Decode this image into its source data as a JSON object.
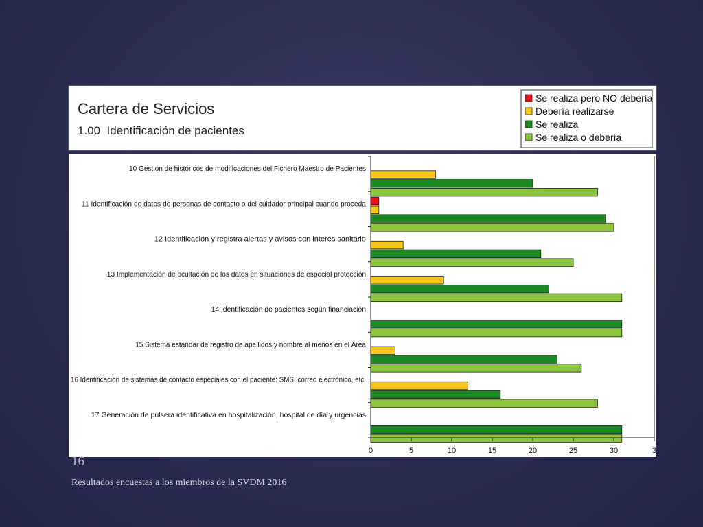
{
  "page_number": "16",
  "footer": "Resultados encuestas a los miembros de la SVDM 2016",
  "chart_data": {
    "type": "bar",
    "orientation": "horizontal",
    "title": "Cartera de Servicios",
    "subtitle": "1.00  Identificación de pacientes",
    "categories": [
      "10 Gestión de históricos de modificaciones del Fichero Maestro de Pacientes",
      "11 Identificación de datos de personas de contacto o del cuidador principal cuando proceda",
      "12 Identificación y registra alertas y avisos con interés sanitario",
      "13 Implementación de ocultación de los datos en situaciones de especial protección",
      "14 Identificación de pacientes según financiación",
      "15 Sistema estándar de registro de apellidos y nombre al menos en el Área",
      "16 Identificación de sistemas de contacto especiales con el paciente: SMS, correo electrónico, etc.",
      "17 Generación de pulsera identificativa en hospitalización, hospital de día y urgencias"
    ],
    "series": [
      {
        "name": "Se realiza pero NO debería",
        "color": "#e8141c",
        "values": [
          0,
          1,
          0,
          0,
          0,
          0,
          0,
          0
        ]
      },
      {
        "name": "Debería realizarse",
        "color": "#f6c71a",
        "values": [
          8,
          1,
          4,
          9,
          0,
          3,
          12,
          0
        ]
      },
      {
        "name": "Se realiza",
        "color": "#1c8a24",
        "values": [
          20,
          29,
          21,
          22,
          31,
          23,
          16,
          31
        ]
      },
      {
        "name": "Se realiza o debería",
        "color": "#8dc53e",
        "values": [
          28,
          30,
          25,
          31,
          31,
          26,
          28,
          31
        ]
      }
    ],
    "xlim": [
      0,
      35
    ],
    "xticks": [
      "0",
      "5",
      "10",
      "15",
      "20",
      "25",
      "30",
      "3"
    ],
    "legend_position": "top-right",
    "grid": false
  }
}
